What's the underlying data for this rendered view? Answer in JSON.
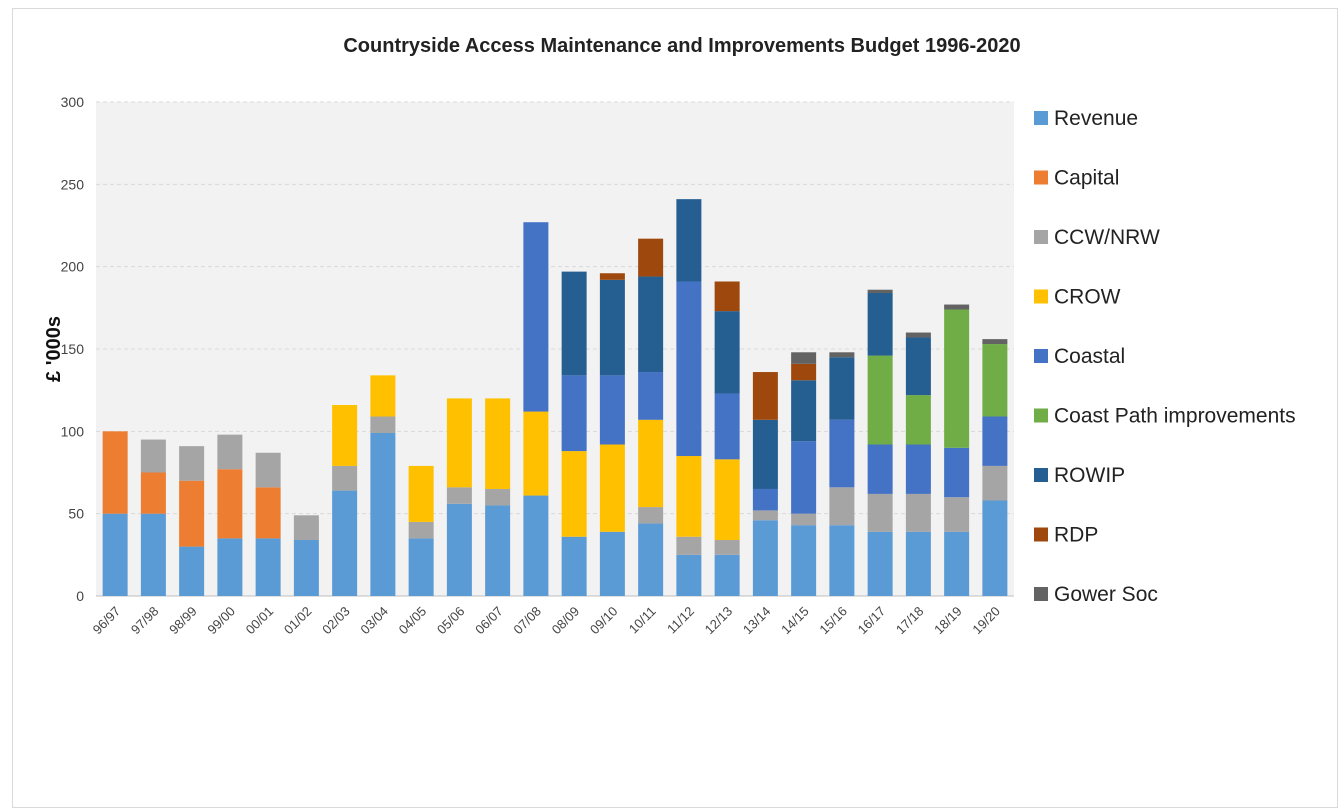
{
  "chart_data": {
    "type": "bar",
    "stacked": true,
    "title": "Countryside Access Maintenance and Improvements  Budget 1996-2020",
    "ylabel": "£ '000s",
    "xlabel": "",
    "ylim": [
      0,
      300
    ],
    "yticks": [
      0,
      50,
      100,
      150,
      200,
      250,
      300
    ],
    "grid": true,
    "legend_position": "right",
    "categories": [
      "96/97",
      "97/98",
      "98/99",
      "99/00",
      "00/01",
      "01/02",
      "02/03",
      "03/04",
      "04/05",
      "05/06",
      "06/07",
      "07/08",
      "08/09",
      "09/10",
      "10/11",
      "11/12",
      "12/13",
      "13/14",
      "14/15",
      "15/16",
      "16/17",
      "17/18",
      "18/19",
      "19/20"
    ],
    "series": [
      {
        "name": "Revenue",
        "color": "#5B9BD5",
        "values": [
          50,
          50,
          30,
          35,
          35,
          34,
          64,
          99,
          35,
          56,
          55,
          61,
          36,
          39,
          44,
          25,
          25,
          46,
          43,
          43,
          39,
          39,
          39,
          58
        ]
      },
      {
        "name": "Capital",
        "color": "#ED7D31",
        "values": [
          50,
          25,
          40,
          42,
          31,
          0,
          0,
          0,
          0,
          0,
          0,
          0,
          0,
          0,
          0,
          0,
          0,
          0,
          0,
          0,
          0,
          0,
          0,
          0
        ]
      },
      {
        "name": "CCW/NRW",
        "color": "#A5A5A5",
        "values": [
          0,
          20,
          21,
          21,
          21,
          15,
          15,
          10,
          10,
          10,
          10,
          0,
          0,
          0,
          10,
          11,
          9,
          6,
          7,
          23,
          23,
          23,
          21,
          21
        ]
      },
      {
        "name": "CROW",
        "color": "#FFC000",
        "values": [
          0,
          0,
          0,
          0,
          0,
          0,
          37,
          25,
          34,
          54,
          55,
          51,
          52,
          53,
          53,
          49,
          49,
          0,
          0,
          0,
          0,
          0,
          0,
          0
        ]
      },
      {
        "name": "Coastal",
        "color": "#4472C4",
        "values": [
          0,
          0,
          0,
          0,
          0,
          0,
          0,
          0,
          0,
          0,
          0,
          115,
          46,
          42,
          29,
          106,
          40,
          13,
          44,
          41,
          30,
          30,
          30,
          30
        ]
      },
      {
        "name": "Coast Path improvements",
        "color": "#70AD47",
        "values": [
          0,
          0,
          0,
          0,
          0,
          0,
          0,
          0,
          0,
          0,
          0,
          0,
          0,
          0,
          0,
          0,
          0,
          0,
          0,
          0,
          54,
          30,
          84,
          44
        ]
      },
      {
        "name": "ROWIP",
        "color": "#255E91",
        "values": [
          0,
          0,
          0,
          0,
          0,
          0,
          0,
          0,
          0,
          0,
          0,
          0,
          63,
          58,
          58,
          50,
          50,
          42,
          37,
          38,
          38,
          35,
          0,
          0
        ]
      },
      {
        "name": "RDP",
        "color": "#9E480E",
        "values": [
          0,
          0,
          0,
          0,
          0,
          0,
          0,
          0,
          0,
          0,
          0,
          0,
          0,
          4,
          23,
          0,
          18,
          29,
          10,
          0,
          0,
          0,
          0,
          0
        ]
      },
      {
        "name": "Gower Soc",
        "color": "#636363",
        "values": [
          0,
          0,
          0,
          0,
          0,
          0,
          0,
          0,
          0,
          0,
          0,
          0,
          0,
          0,
          0,
          0,
          0,
          0,
          7,
          3,
          2,
          3,
          3,
          3
        ]
      }
    ]
  }
}
